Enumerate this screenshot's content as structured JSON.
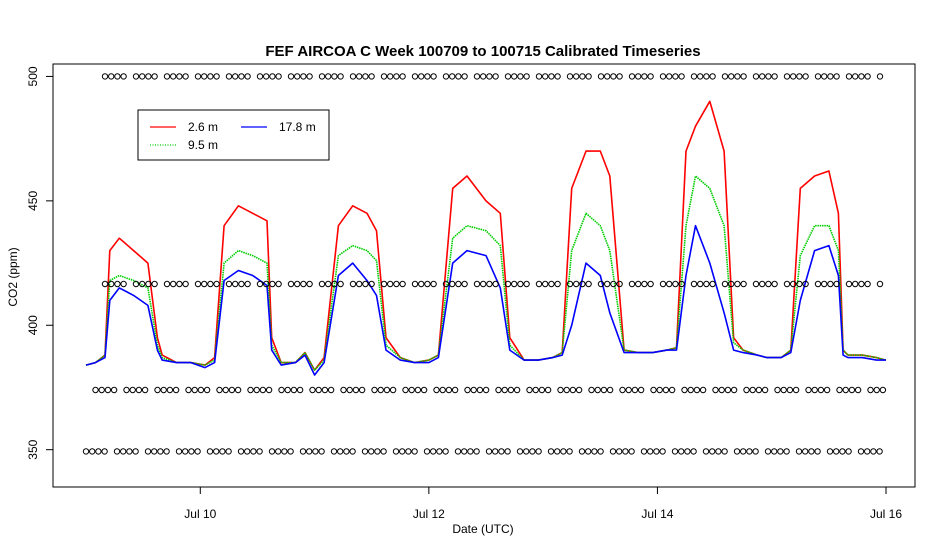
{
  "chart_data": {
    "type": "line",
    "title": "FEF AIRCOA C  Week 100709 to 100715  Calibrated Timeseries",
    "xlabel": "Date (UTC)",
    "ylabel": "CO2 (ppm)",
    "x_axis": {
      "type": "date",
      "range": [
        "2010-07-09",
        "2010-07-16"
      ],
      "ticks": [
        {
          "date": "2010-07-10",
          "label": "Jul 10"
        },
        {
          "date": "2010-07-12",
          "label": "Jul 12"
        },
        {
          "date": "2010-07-14",
          "label": "Jul 14"
        },
        {
          "date": "2010-07-16",
          "label": "Jul 16"
        }
      ]
    },
    "ylim": [
      335,
      505
    ],
    "y_ticks": [
      350,
      400,
      450,
      500
    ],
    "grid": false,
    "legend": {
      "position": "top-left",
      "entries": [
        {
          "name": "2.6 m",
          "color": "#ff0000",
          "style": "solid"
        },
        {
          "name": "9.5 m",
          "color": "#00cd00",
          "style": "dotted"
        },
        {
          "name": "17.8 m",
          "color": "#0000ff",
          "style": "solid"
        }
      ]
    },
    "series": [
      {
        "name": "2.6 m",
        "color": "#ff0000",
        "x": [
          "2010-07-09 00:00",
          "2010-07-09 02:00",
          "2010-07-09 04:00",
          "2010-07-09 05:00",
          "2010-07-09 07:00",
          "2010-07-09 10:00",
          "2010-07-09 13:00",
          "2010-07-09 15:00",
          "2010-07-09 16:00",
          "2010-07-09 19:00",
          "2010-07-09 22:00",
          "2010-07-10 01:00",
          "2010-07-10 03:00",
          "2010-07-10 05:00",
          "2010-07-10 08:00",
          "2010-07-10 11:00",
          "2010-07-10 14:00",
          "2010-07-10 15:00",
          "2010-07-10 17:00",
          "2010-07-10 20:00",
          "2010-07-10 22:00",
          "2010-07-11 00:00",
          "2010-07-11 02:00",
          "2010-07-11 05:00",
          "2010-07-11 08:00",
          "2010-07-11 11:00",
          "2010-07-11 13:00",
          "2010-07-11 15:00",
          "2010-07-11 18:00",
          "2010-07-11 21:00",
          "2010-07-12 00:00",
          "2010-07-12 02:00",
          "2010-07-12 05:00",
          "2010-07-12 08:00",
          "2010-07-12 12:00",
          "2010-07-12 15:00",
          "2010-07-12 17:00",
          "2010-07-12 20:00",
          "2010-07-12 23:00",
          "2010-07-13 02:00",
          "2010-07-13 04:00",
          "2010-07-13 06:00",
          "2010-07-13 09:00",
          "2010-07-13 12:00",
          "2010-07-13 14:00",
          "2010-07-13 17:00",
          "2010-07-13 20:00",
          "2010-07-13 23:00",
          "2010-07-14 02:00",
          "2010-07-14 04:00",
          "2010-07-14 06:00",
          "2010-07-14 08:00",
          "2010-07-14 11:00",
          "2010-07-14 14:00",
          "2010-07-14 16:00",
          "2010-07-14 18:00",
          "2010-07-14 21:00",
          "2010-07-14 23:00",
          "2010-07-15 02:00",
          "2010-07-15 04:00",
          "2010-07-15 06:00",
          "2010-07-15 09:00",
          "2010-07-15 12:00",
          "2010-07-15 14:00",
          "2010-07-15 15:00",
          "2010-07-15 16:00",
          "2010-07-15 19:00",
          "2010-07-15 22:00",
          "2010-07-16 00:00"
        ],
        "values": [
          384,
          385,
          388,
          430,
          435,
          430,
          425,
          395,
          388,
          385,
          385,
          384,
          387,
          440,
          448,
          445,
          442,
          395,
          385,
          385,
          389,
          382,
          387,
          440,
          448,
          445,
          438,
          395,
          387,
          385,
          386,
          388,
          455,
          460,
          450,
          445,
          395,
          386,
          386,
          387,
          389,
          455,
          470,
          470,
          460,
          390,
          389,
          389,
          390,
          391,
          470,
          480,
          490,
          470,
          395,
          390,
          388,
          387,
          387,
          390,
          455,
          460,
          462,
          445,
          390,
          388,
          388,
          387,
          386
        ]
      },
      {
        "name": "9.5 m",
        "color": "#00cd00",
        "x": [
          "2010-07-09 00:00",
          "2010-07-09 02:00",
          "2010-07-09 04:00",
          "2010-07-09 05:00",
          "2010-07-09 07:00",
          "2010-07-09 10:00",
          "2010-07-09 13:00",
          "2010-07-09 15:00",
          "2010-07-09 16:00",
          "2010-07-09 19:00",
          "2010-07-09 22:00",
          "2010-07-10 01:00",
          "2010-07-10 03:00",
          "2010-07-10 05:00",
          "2010-07-10 08:00",
          "2010-07-10 11:00",
          "2010-07-10 14:00",
          "2010-07-10 15:00",
          "2010-07-10 17:00",
          "2010-07-10 20:00",
          "2010-07-10 22:00",
          "2010-07-11 00:00",
          "2010-07-11 02:00",
          "2010-07-11 05:00",
          "2010-07-11 08:00",
          "2010-07-11 11:00",
          "2010-07-11 13:00",
          "2010-07-11 15:00",
          "2010-07-11 18:00",
          "2010-07-11 21:00",
          "2010-07-12 00:00",
          "2010-07-12 02:00",
          "2010-07-12 05:00",
          "2010-07-12 08:00",
          "2010-07-12 12:00",
          "2010-07-12 15:00",
          "2010-07-12 17:00",
          "2010-07-12 20:00",
          "2010-07-12 23:00",
          "2010-07-13 02:00",
          "2010-07-13 04:00",
          "2010-07-13 06:00",
          "2010-07-13 09:00",
          "2010-07-13 12:00",
          "2010-07-13 14:00",
          "2010-07-13 17:00",
          "2010-07-13 20:00",
          "2010-07-13 23:00",
          "2010-07-14 02:00",
          "2010-07-14 04:00",
          "2010-07-14 06:00",
          "2010-07-14 08:00",
          "2010-07-14 11:00",
          "2010-07-14 14:00",
          "2010-07-14 16:00",
          "2010-07-14 18:00",
          "2010-07-14 21:00",
          "2010-07-14 23:00",
          "2010-07-15 02:00",
          "2010-07-15 04:00",
          "2010-07-15 06:00",
          "2010-07-15 09:00",
          "2010-07-15 12:00",
          "2010-07-15 14:00",
          "2010-07-15 15:00",
          "2010-07-15 16:00",
          "2010-07-15 19:00",
          "2010-07-15 22:00",
          "2010-07-16 00:00"
        ],
        "values": [
          384,
          385,
          388,
          418,
          420,
          418,
          415,
          392,
          387,
          385,
          385,
          384,
          386,
          425,
          430,
          428,
          425,
          392,
          385,
          385,
          389,
          382,
          386,
          428,
          432,
          430,
          426,
          392,
          387,
          385,
          386,
          388,
          435,
          440,
          438,
          432,
          392,
          386,
          386,
          387,
          389,
          430,
          445,
          440,
          430,
          390,
          389,
          389,
          390,
          391,
          440,
          460,
          455,
          440,
          393,
          390,
          388,
          387,
          387,
          390,
          428,
          440,
          440,
          430,
          390,
          388,
          388,
          387,
          386
        ]
      },
      {
        "name": "17.8 m",
        "color": "#0000ff",
        "x": [
          "2010-07-09 00:00",
          "2010-07-09 02:00",
          "2010-07-09 04:00",
          "2010-07-09 05:00",
          "2010-07-09 07:00",
          "2010-07-09 10:00",
          "2010-07-09 13:00",
          "2010-07-09 15:00",
          "2010-07-09 16:00",
          "2010-07-09 19:00",
          "2010-07-09 22:00",
          "2010-07-10 01:00",
          "2010-07-10 03:00",
          "2010-07-10 05:00",
          "2010-07-10 08:00",
          "2010-07-10 11:00",
          "2010-07-10 14:00",
          "2010-07-10 15:00",
          "2010-07-10 17:00",
          "2010-07-10 20:00",
          "2010-07-10 22:00",
          "2010-07-11 00:00",
          "2010-07-11 02:00",
          "2010-07-11 05:00",
          "2010-07-11 08:00",
          "2010-07-11 11:00",
          "2010-07-11 13:00",
          "2010-07-11 15:00",
          "2010-07-11 18:00",
          "2010-07-11 21:00",
          "2010-07-12 00:00",
          "2010-07-12 02:00",
          "2010-07-12 05:00",
          "2010-07-12 08:00",
          "2010-07-12 12:00",
          "2010-07-12 15:00",
          "2010-07-12 17:00",
          "2010-07-12 20:00",
          "2010-07-12 23:00",
          "2010-07-13 02:00",
          "2010-07-13 04:00",
          "2010-07-13 06:00",
          "2010-07-13 09:00",
          "2010-07-13 12:00",
          "2010-07-13 14:00",
          "2010-07-13 17:00",
          "2010-07-13 20:00",
          "2010-07-13 23:00",
          "2010-07-14 02:00",
          "2010-07-14 04:00",
          "2010-07-14 06:00",
          "2010-07-14 08:00",
          "2010-07-14 11:00",
          "2010-07-14 14:00",
          "2010-07-14 16:00",
          "2010-07-14 18:00",
          "2010-07-14 21:00",
          "2010-07-14 23:00",
          "2010-07-15 02:00",
          "2010-07-15 04:00",
          "2010-07-15 06:00",
          "2010-07-15 09:00",
          "2010-07-15 12:00",
          "2010-07-15 14:00",
          "2010-07-15 15:00",
          "2010-07-15 16:00",
          "2010-07-15 19:00",
          "2010-07-15 22:00",
          "2010-07-16 00:00"
        ],
        "values": [
          384,
          385,
          387,
          410,
          415,
          412,
          408,
          390,
          386,
          385,
          385,
          383,
          385,
          418,
          422,
          420,
          416,
          390,
          384,
          385,
          388,
          380,
          385,
          420,
          425,
          418,
          412,
          390,
          386,
          385,
          385,
          387,
          425,
          430,
          428,
          415,
          390,
          386,
          386,
          387,
          388,
          400,
          425,
          420,
          405,
          389,
          389,
          389,
          390,
          390,
          420,
          440,
          425,
          405,
          390,
          389,
          388,
          387,
          387,
          389,
          410,
          430,
          432,
          420,
          388,
          387,
          387,
          386,
          386
        ]
      },
      {
        "name": "",
        "type": "scatter",
        "marker": "open-circle",
        "x_range": [
          "2010-07-09 04:00",
          "2010-07-16 00:00"
        ],
        "levels": [
          {
            "y": 500,
            "x_range": [
              "2010-07-09 04:00",
              "2010-07-16 00:00"
            ]
          },
          {
            "y": 416.6,
            "x_range": [
              "2010-07-09 04:00",
              "2010-07-16 00:00"
            ]
          },
          {
            "y": 374,
            "x_range": [
              "2010-07-09 02:00",
              "2010-07-16 00:00"
            ]
          },
          {
            "y": 349.3,
            "x_range": [
              "2010-07-09 00:00",
              "2010-07-16 00:00"
            ]
          }
        ]
      }
    ]
  }
}
